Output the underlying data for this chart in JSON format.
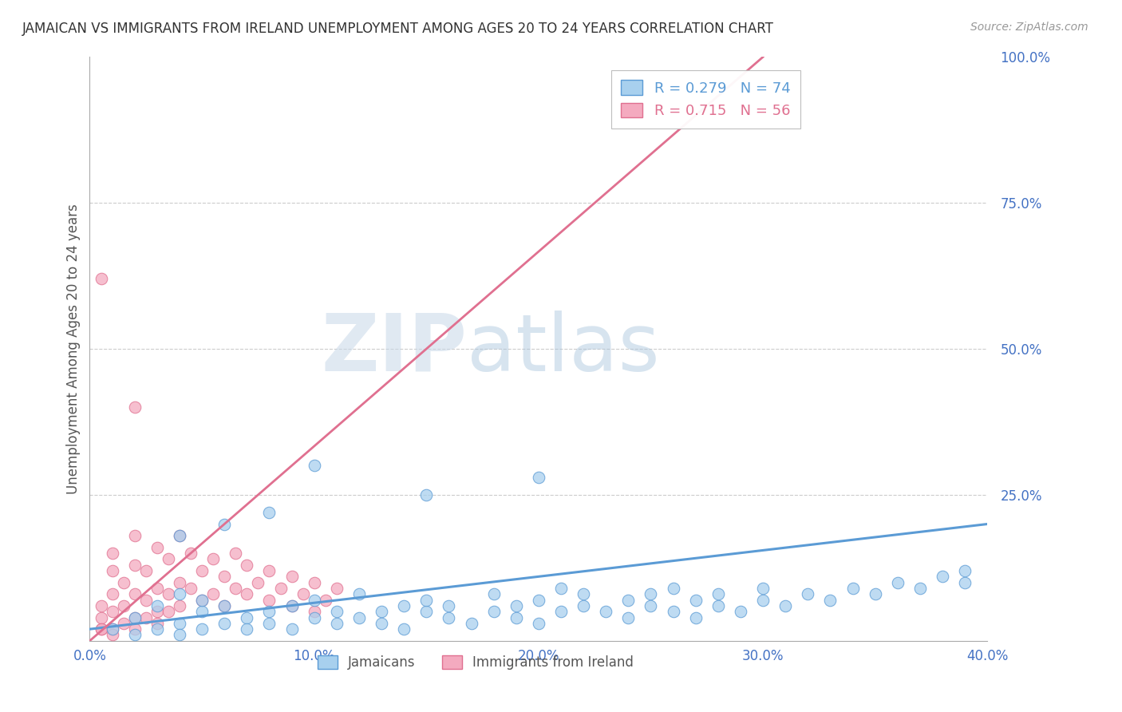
{
  "title": "JAMAICAN VS IMMIGRANTS FROM IRELAND UNEMPLOYMENT AMONG AGES 20 TO 24 YEARS CORRELATION CHART",
  "source": "Source: ZipAtlas.com",
  "ylabel": "Unemployment Among Ages 20 to 24 years",
  "xlim": [
    0.0,
    0.4
  ],
  "ylim": [
    0.0,
    1.0
  ],
  "xtick_labels": [
    "0.0%",
    "10.0%",
    "20.0%",
    "30.0%",
    "40.0%"
  ],
  "xtick_vals": [
    0.0,
    0.1,
    0.2,
    0.3,
    0.4
  ],
  "ytick_labels": [
    "100.0%",
    "75.0%",
    "50.0%",
    "25.0%",
    ""
  ],
  "ytick_vals": [
    1.0,
    0.75,
    0.5,
    0.25,
    0.0
  ],
  "blue_R": 0.279,
  "blue_N": 74,
  "pink_R": 0.715,
  "pink_N": 56,
  "blue_color": "#A8D0EE",
  "pink_color": "#F4AABF",
  "blue_line_color": "#5B9BD5",
  "pink_line_color": "#E07090",
  "watermark_zip": "ZIP",
  "watermark_atlas": "atlas",
  "blue_line_x": [
    0.0,
    0.4
  ],
  "blue_line_y": [
    0.02,
    0.2
  ],
  "pink_line_x": [
    0.0,
    0.3
  ],
  "pink_line_y": [
    0.0,
    1.0
  ],
  "blue_x": [
    0.01,
    0.02,
    0.02,
    0.03,
    0.03,
    0.04,
    0.04,
    0.04,
    0.05,
    0.05,
    0.05,
    0.06,
    0.06,
    0.07,
    0.07,
    0.08,
    0.08,
    0.09,
    0.09,
    0.1,
    0.1,
    0.11,
    0.11,
    0.12,
    0.12,
    0.13,
    0.13,
    0.14,
    0.14,
    0.15,
    0.15,
    0.16,
    0.16,
    0.17,
    0.18,
    0.18,
    0.19,
    0.19,
    0.2,
    0.2,
    0.21,
    0.21,
    0.22,
    0.22,
    0.23,
    0.24,
    0.24,
    0.25,
    0.25,
    0.26,
    0.26,
    0.27,
    0.27,
    0.28,
    0.28,
    0.29,
    0.3,
    0.3,
    0.31,
    0.32,
    0.33,
    0.34,
    0.35,
    0.36,
    0.37,
    0.38,
    0.39,
    0.39,
    0.2,
    0.15,
    0.1,
    0.08,
    0.06,
    0.04
  ],
  "blue_y": [
    0.02,
    0.01,
    0.04,
    0.02,
    0.06,
    0.03,
    0.01,
    0.08,
    0.02,
    0.05,
    0.07,
    0.03,
    0.06,
    0.04,
    0.02,
    0.05,
    0.03,
    0.06,
    0.02,
    0.04,
    0.07,
    0.03,
    0.05,
    0.04,
    0.08,
    0.05,
    0.03,
    0.06,
    0.02,
    0.05,
    0.07,
    0.04,
    0.06,
    0.03,
    0.05,
    0.08,
    0.04,
    0.06,
    0.07,
    0.03,
    0.05,
    0.09,
    0.06,
    0.08,
    0.05,
    0.07,
    0.04,
    0.08,
    0.06,
    0.05,
    0.09,
    0.04,
    0.07,
    0.06,
    0.08,
    0.05,
    0.07,
    0.09,
    0.06,
    0.08,
    0.07,
    0.09,
    0.08,
    0.1,
    0.09,
    0.11,
    0.1,
    0.12,
    0.28,
    0.25,
    0.3,
    0.22,
    0.2,
    0.18
  ],
  "pink_x": [
    0.005,
    0.005,
    0.005,
    0.01,
    0.01,
    0.01,
    0.01,
    0.01,
    0.015,
    0.015,
    0.02,
    0.02,
    0.02,
    0.02,
    0.025,
    0.025,
    0.03,
    0.03,
    0.03,
    0.035,
    0.035,
    0.04,
    0.04,
    0.04,
    0.045,
    0.045,
    0.05,
    0.05,
    0.055,
    0.055,
    0.06,
    0.06,
    0.065,
    0.065,
    0.07,
    0.07,
    0.075,
    0.08,
    0.08,
    0.085,
    0.09,
    0.09,
    0.095,
    0.1,
    0.1,
    0.105,
    0.11,
    0.005,
    0.02,
    0.005,
    0.01,
    0.015,
    0.02,
    0.025,
    0.03,
    0.035
  ],
  "pink_y": [
    0.02,
    0.04,
    0.06,
    0.02,
    0.05,
    0.08,
    0.12,
    0.15,
    0.06,
    0.1,
    0.04,
    0.08,
    0.13,
    0.18,
    0.07,
    0.12,
    0.05,
    0.09,
    0.16,
    0.08,
    0.14,
    0.06,
    0.1,
    0.18,
    0.09,
    0.15,
    0.07,
    0.12,
    0.08,
    0.14,
    0.06,
    0.11,
    0.09,
    0.15,
    0.08,
    0.13,
    0.1,
    0.07,
    0.12,
    0.09,
    0.06,
    0.11,
    0.08,
    0.05,
    0.1,
    0.07,
    0.09,
    0.62,
    0.4,
    0.02,
    0.01,
    0.03,
    0.02,
    0.04,
    0.03,
    0.05
  ]
}
